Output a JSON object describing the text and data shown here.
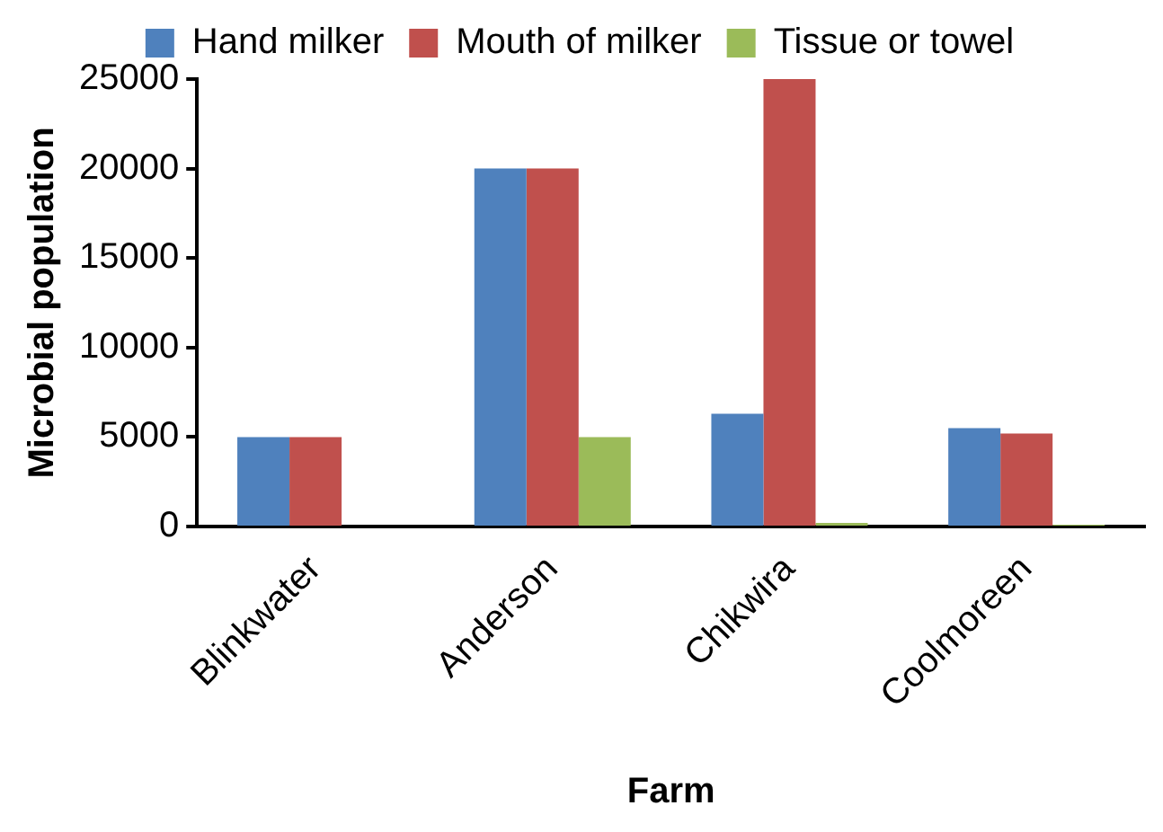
{
  "chart_data": {
    "type": "bar",
    "xlabel": "Farm",
    "ylabel": "Microbial population",
    "categories": [
      "Blinkwater",
      "Anderson",
      "Chikwira",
      "Coolmoreen"
    ],
    "series": [
      {
        "name": "Hand milker",
        "color": "#4f81bd",
        "values": [
          5000,
          20000,
          6300,
          5500
        ]
      },
      {
        "name": "Mouth of milker",
        "color": "#c0504d",
        "values": [
          5000,
          20000,
          25000,
          5200
        ]
      },
      {
        "name": "Tissue or towel",
        "color": "#9bbb59",
        "values": [
          0,
          5000,
          200,
          100
        ]
      }
    ],
    "ylim": [
      0,
      25000
    ],
    "yticks": [
      0,
      5000,
      10000,
      15000,
      20000,
      25000
    ],
    "grid": false,
    "legend": "top"
  }
}
